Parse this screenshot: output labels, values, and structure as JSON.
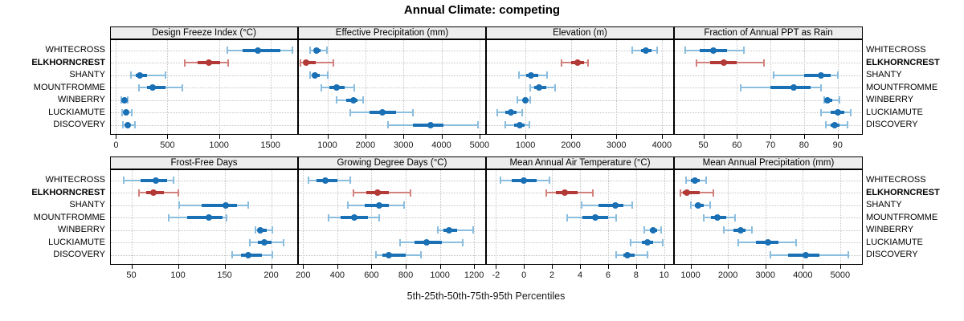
{
  "title": "Annual Climate: competing",
  "caption": "5th-25th-50th-75th-95th Percentiles",
  "sites_top_to_bottom": [
    "WHITECROSS",
    "ELKHORNCREST",
    "SHANTY",
    "MOUNTFROMME",
    "WINBERRY",
    "LUCKIAMUTE",
    "DISCOVERY"
  ],
  "highlight_site": "ELKHORNCREST",
  "colors": {
    "normal_dark": "#1a70b4",
    "normal_light": "#8bbdde",
    "highlight_dark": "#b23936",
    "highlight_light": "#d2807b",
    "strip_bg": "#ededed",
    "grid": "#c4c4c4",
    "border": "#000000"
  },
  "chart_data": {
    "type": "scatter",
    "subtype": "trellis-percentile-dotplot",
    "title": "Annual Climate: competing",
    "caption": "5th-25th-50th-75th-95th Percentiles",
    "percentiles": [
      5,
      25,
      50,
      75,
      95
    ],
    "grid": "dotted",
    "legend_position": "none",
    "highlight_site": "ELKHORNCREST",
    "panels": [
      {
        "title": "Design Freeze Index (°C)",
        "row": 1,
        "col": 1,
        "xlim": [
          -50,
          1760
        ],
        "ticks": [
          0,
          500,
          1000,
          1500
        ],
        "values": [
          {
            "site": "WHITECROSS",
            "p": [
              1080,
              1230,
              1380,
              1600,
              1710
            ]
          },
          {
            "site": "ELKHORNCREST",
            "p": [
              670,
              790,
              900,
              1010,
              1090
            ]
          },
          {
            "site": "SHANTY",
            "p": [
              145,
              195,
              230,
              300,
              480
            ]
          },
          {
            "site": "MOUNTFROMME",
            "p": [
              225,
              300,
              355,
              480,
              645
            ]
          },
          {
            "site": "WINBERRY",
            "p": [
              55,
              70,
              80,
              95,
              110
            ]
          },
          {
            "site": "LUCKIAMUTE",
            "p": [
              60,
              85,
              100,
              120,
              150
            ]
          },
          {
            "site": "DISCOVERY",
            "p": [
              65,
              90,
              110,
              140,
              185
            ]
          }
        ]
      },
      {
        "title": "Effective Precipitation (mm)",
        "row": 1,
        "col": 2,
        "xlim": [
          250,
          5150
        ],
        "ticks": [
          1000,
          2000,
          3000,
          4000,
          5000
        ],
        "values": [
          {
            "site": "WHITECROSS",
            "p": [
              550,
              650,
              720,
              820,
              980
            ]
          },
          {
            "site": "ELKHORNCREST",
            "p": [
              300,
              380,
              450,
              700,
              1150
            ]
          },
          {
            "site": "SHANTY",
            "p": [
              550,
              630,
              680,
              800,
              1020
            ]
          },
          {
            "site": "MOUNTFROMME",
            "p": [
              850,
              1050,
              1250,
              1450,
              1700
            ]
          },
          {
            "site": "WINBERRY",
            "p": [
              1250,
              1500,
              1680,
              1800,
              1950
            ]
          },
          {
            "site": "LUCKIAMUTE",
            "p": [
              1600,
              2100,
              2450,
              2800,
              3250
            ]
          },
          {
            "site": "DISCOVERY",
            "p": [
              2600,
              3250,
              3720,
              4050,
              4950
            ]
          }
        ]
      },
      {
        "title": "Elevation (m)",
        "row": 1,
        "col": 3,
        "xlim": [
          150,
          4250
        ],
        "ticks": [
          1000,
          2000,
          3000,
          4000
        ],
        "values": [
          {
            "site": "WHITECROSS",
            "p": [
              3350,
              3550,
              3650,
              3780,
              3900
            ]
          },
          {
            "site": "ELKHORNCREST",
            "p": [
              1800,
              2000,
              2150,
              2280,
              2380
            ]
          },
          {
            "site": "SHANTY",
            "p": [
              850,
              1020,
              1130,
              1280,
              1480
            ]
          },
          {
            "site": "MOUNTFROMME",
            "p": [
              1100,
              1200,
              1290,
              1450,
              1650
            ]
          },
          {
            "site": "WINBERRY",
            "p": [
              820,
              950,
              1000,
              1060,
              1100
            ]
          },
          {
            "site": "LUCKIAMUTE",
            "p": [
              380,
              550,
              680,
              800,
              930
            ]
          },
          {
            "site": "DISCOVERY",
            "p": [
              550,
              750,
              870,
              980,
              1080
            ]
          }
        ]
      },
      {
        "title": "Fraction of Annual PPT as Rain",
        "row": 1,
        "col": 4,
        "xlim": [
          41.5,
          97
        ],
        "ticks": [
          50,
          60,
          70,
          80,
          90
        ],
        "values": [
          {
            "site": "WHITECROSS",
            "p": [
              44.5,
              49,
              53,
              57,
              62
            ]
          },
          {
            "site": "ELKHORNCREST",
            "p": [
              48,
              52,
              56,
              60,
              68
            ]
          },
          {
            "site": "SHANTY",
            "p": [
              71,
              80,
              85,
              88,
              90
            ]
          },
          {
            "site": "MOUNTFROMME",
            "p": [
              61,
              70,
              77,
              82,
              85
            ]
          },
          {
            "site": "WINBERRY",
            "p": [
              86,
              86.5,
              87,
              88.5,
              90.5
            ]
          },
          {
            "site": "LUCKIAMUTE",
            "p": [
              85,
              88,
              90,
              92,
              94
            ]
          },
          {
            "site": "DISCOVERY",
            "p": [
              86.5,
              88,
              89,
              90.5,
              93
            ]
          }
        ]
      },
      {
        "title": "Frost-Free Days",
        "row": 2,
        "col": 1,
        "xlim": [
          28,
          228
        ],
        "ticks": [
          50,
          100,
          150,
          200
        ],
        "values": [
          {
            "site": "WHITECROSS",
            "p": [
              42,
              60,
              76,
              88,
              95
            ]
          },
          {
            "site": "ELKHORNCREST",
            "p": [
              58,
              66,
              74,
              85,
              100
            ]
          },
          {
            "site": "SHANTY",
            "p": [
              101,
              125,
              151,
              163,
              175
            ]
          },
          {
            "site": "MOUNTFROMME",
            "p": [
              90,
              110,
              133,
              148,
              152
            ]
          },
          {
            "site": "WINBERRY",
            "p": [
              183,
              186,
              188,
              195,
              201
            ]
          },
          {
            "site": "LUCKIAMUTE",
            "p": [
              177,
              186,
              193,
              200,
              213
            ]
          },
          {
            "site": "DISCOVERY",
            "p": [
              158,
              168,
              175,
              190,
              201
            ]
          }
        ]
      },
      {
        "title": "Growing Degree Days (°C)",
        "row": 2,
        "col": 2,
        "xlim": [
          175,
          1265
        ],
        "ticks": [
          200,
          400,
          600,
          800,
          1000,
          1200
        ],
        "values": [
          {
            "site": "WHITECROSS",
            "p": [
              230,
              280,
              330,
              400,
              475
            ]
          },
          {
            "site": "ELKHORNCREST",
            "p": [
              495,
              570,
              635,
              700,
              830
            ]
          },
          {
            "site": "SHANTY",
            "p": [
              460,
              560,
              645,
              700,
              790
            ]
          },
          {
            "site": "MOUNTFROMME",
            "p": [
              350,
              420,
              500,
              580,
              645
            ]
          },
          {
            "site": "WINBERRY",
            "p": [
              990,
              1020,
              1055,
              1100,
              1195
            ]
          },
          {
            "site": "LUCKIAMUTE",
            "p": [
              765,
              850,
              920,
              1010,
              1135
            ]
          },
          {
            "site": "DISCOVERY",
            "p": [
              625,
              665,
              700,
              800,
              890
            ]
          }
        ]
      },
      {
        "title": "Mean Annual Air Temperature (°C)",
        "row": 2,
        "col": 3,
        "xlim": [
          -2.65,
          10.65
        ],
        "ticks": [
          -2,
          0,
          2,
          4,
          6,
          8,
          10
        ],
        "values": [
          {
            "site": "WHITECROSS",
            "p": [
              -1.7,
              -0.9,
              0.0,
              0.9,
              1.8
            ]
          },
          {
            "site": "ELKHORNCREST",
            "p": [
              1.6,
              2.3,
              2.9,
              3.8,
              4.9
            ]
          },
          {
            "site": "SHANTY",
            "p": [
              4.1,
              5.3,
              6.5,
              7.1,
              7.7
            ]
          },
          {
            "site": "MOUNTFROMME",
            "p": [
              3.1,
              4.2,
              5.1,
              6.0,
              6.6
            ]
          },
          {
            "site": "WINBERRY",
            "p": [
              8.6,
              9.0,
              9.2,
              9.5,
              9.8
            ]
          },
          {
            "site": "LUCKIAMUTE",
            "p": [
              7.6,
              8.4,
              8.8,
              9.2,
              9.9
            ]
          },
          {
            "site": "DISCOVERY",
            "p": [
              6.6,
              7.1,
              7.4,
              7.9,
              8.8
            ]
          }
        ]
      },
      {
        "title": "Mean Annual Precipitation (mm)",
        "row": 2,
        "col": 4,
        "xlim": [
          580,
          5560
        ],
        "ticks": [
          1000,
          2000,
          3000,
          4000,
          5000
        ],
        "values": [
          {
            "site": "WHITECROSS",
            "p": [
              870,
              1020,
              1120,
              1250,
              1420
            ]
          },
          {
            "site": "ELKHORNCREST",
            "p": [
              720,
              800,
              900,
              1250,
              1620
            ]
          },
          {
            "site": "SHANTY",
            "p": [
              1000,
              1120,
              1200,
              1350,
              1520
            ]
          },
          {
            "site": "MOUNTFROMME",
            "p": [
              1350,
              1550,
              1720,
              1950,
              2180
            ]
          },
          {
            "site": "WINBERRY",
            "p": [
              1900,
              2150,
              2330,
              2480,
              2650
            ]
          },
          {
            "site": "LUCKIAMUTE",
            "p": [
              2270,
              2750,
              3070,
              3350,
              3820
            ]
          },
          {
            "site": "DISCOVERY",
            "p": [
              3130,
              3600,
              4080,
              4450,
              5220
            ]
          }
        ]
      }
    ]
  }
}
